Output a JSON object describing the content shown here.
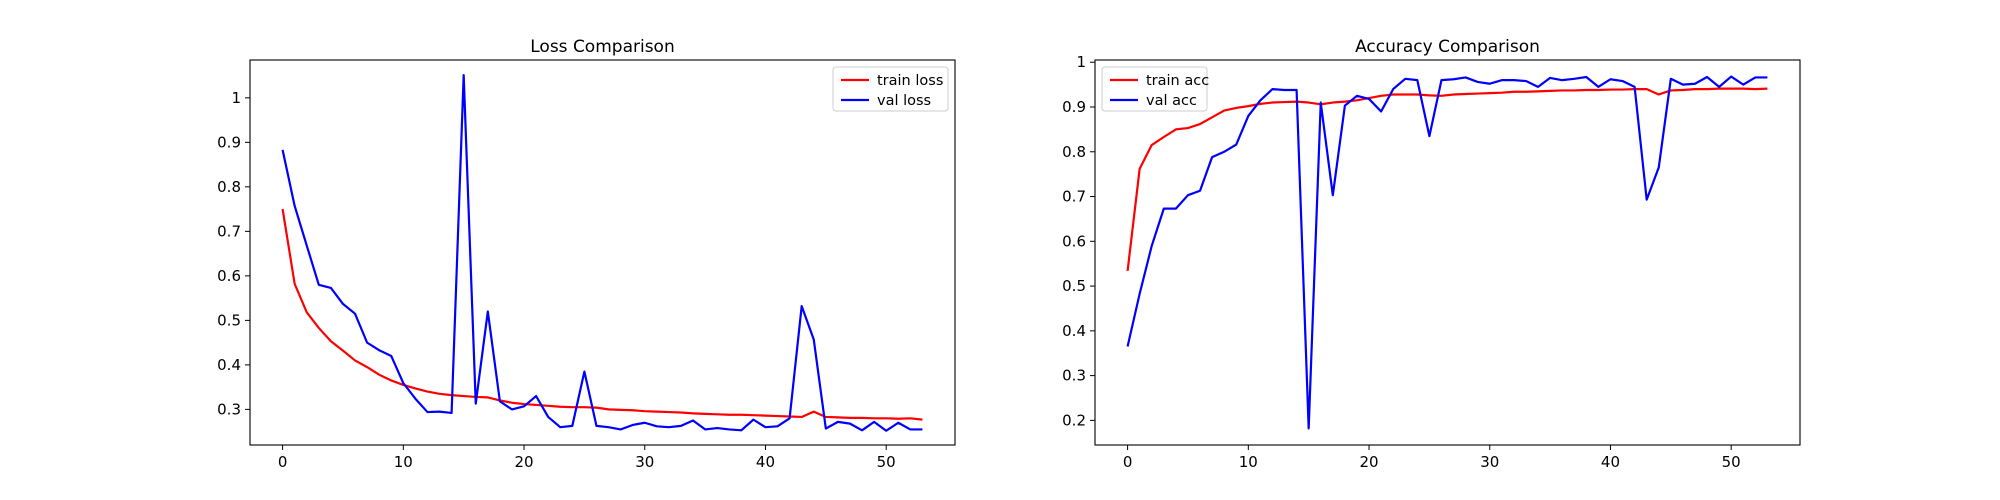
{
  "chart_data": [
    {
      "type": "line",
      "title": "Loss Comparison",
      "xlabel": "",
      "ylabel": "",
      "xlim": [
        -2.7,
        55.7
      ],
      "ylim": [
        0.22,
        1.085
      ],
      "xticks": [
        0,
        10,
        20,
        30,
        40,
        50
      ],
      "yticks": [
        0.3,
        0.4,
        0.5,
        0.6,
        0.7,
        0.8,
        0.9,
        1.0
      ],
      "grid": false,
      "legend_position": "top-right",
      "x": [
        0,
        1,
        2,
        3,
        4,
        5,
        6,
        7,
        8,
        9,
        10,
        11,
        12,
        13,
        14,
        15,
        16,
        17,
        18,
        19,
        20,
        21,
        22,
        23,
        24,
        25,
        26,
        27,
        28,
        29,
        30,
        31,
        32,
        33,
        34,
        35,
        36,
        37,
        38,
        39,
        40,
        41,
        42,
        43,
        44,
        45,
        46,
        47,
        48,
        49,
        50,
        51,
        52,
        53
      ],
      "series": [
        {
          "name": "train loss",
          "color": "#ff0000",
          "values": [
            0.75,
            0.582,
            0.518,
            0.483,
            0.453,
            0.432,
            0.41,
            0.395,
            0.378,
            0.365,
            0.355,
            0.347,
            0.34,
            0.335,
            0.332,
            0.33,
            0.328,
            0.327,
            0.32,
            0.315,
            0.312,
            0.31,
            0.308,
            0.306,
            0.305,
            0.305,
            0.304,
            0.3,
            0.299,
            0.298,
            0.296,
            0.295,
            0.294,
            0.293,
            0.291,
            0.29,
            0.289,
            0.288,
            0.288,
            0.287,
            0.286,
            0.285,
            0.284,
            0.283,
            0.295,
            0.283,
            0.282,
            0.281,
            0.281,
            0.28,
            0.28,
            0.279,
            0.28,
            0.277
          ]
        },
        {
          "name": "val loss",
          "color": "#0000ff",
          "values": [
            0.883,
            0.757,
            0.668,
            0.58,
            0.573,
            0.537,
            0.515,
            0.45,
            0.433,
            0.42,
            0.359,
            0.324,
            0.294,
            0.295,
            0.292,
            1.051,
            0.313,
            0.52,
            0.318,
            0.3,
            0.307,
            0.33,
            0.283,
            0.26,
            0.263,
            0.385,
            0.263,
            0.26,
            0.255,
            0.265,
            0.27,
            0.262,
            0.26,
            0.263,
            0.275,
            0.255,
            0.258,
            0.255,
            0.253,
            0.277,
            0.26,
            0.262,
            0.28,
            0.532,
            0.457,
            0.257,
            0.272,
            0.268,
            0.253,
            0.272,
            0.252,
            0.27,
            0.255,
            0.255
          ]
        }
      ]
    },
    {
      "type": "line",
      "title": "Accuracy Comparison",
      "xlabel": "",
      "ylabel": "",
      "xlim": [
        -2.7,
        55.7
      ],
      "ylim": [
        0.145,
        1.005
      ],
      "xticks": [
        0,
        10,
        20,
        30,
        40,
        50
      ],
      "yticks": [
        0.2,
        0.3,
        0.4,
        0.5,
        0.6,
        0.7,
        0.8,
        0.9,
        1.0
      ],
      "grid": false,
      "legend_position": "top-left",
      "x": [
        0,
        1,
        2,
        3,
        4,
        5,
        6,
        7,
        8,
        9,
        10,
        11,
        12,
        13,
        14,
        15,
        16,
        17,
        18,
        19,
        20,
        21,
        22,
        23,
        24,
        25,
        26,
        27,
        28,
        29,
        30,
        31,
        32,
        33,
        34,
        35,
        36,
        37,
        38,
        39,
        40,
        41,
        42,
        43,
        44,
        45,
        46,
        47,
        48,
        49,
        50,
        51,
        52,
        53
      ],
      "series": [
        {
          "name": "train acc",
          "color": "#ff0000",
          "values": [
            0.534,
            0.762,
            0.815,
            0.833,
            0.85,
            0.853,
            0.862,
            0.877,
            0.892,
            0.898,
            0.902,
            0.907,
            0.91,
            0.911,
            0.912,
            0.91,
            0.906,
            0.91,
            0.912,
            0.915,
            0.92,
            0.925,
            0.928,
            0.928,
            0.928,
            0.926,
            0.925,
            0.928,
            0.929,
            0.93,
            0.931,
            0.932,
            0.934,
            0.934,
            0.935,
            0.936,
            0.937,
            0.937,
            0.938,
            0.938,
            0.939,
            0.939,
            0.94,
            0.94,
            0.928,
            0.937,
            0.938,
            0.94,
            0.94,
            0.941,
            0.941,
            0.941,
            0.94,
            0.941
          ]
        },
        {
          "name": "val acc",
          "color": "#0000ff",
          "values": [
            0.365,
            0.483,
            0.59,
            0.673,
            0.673,
            0.703,
            0.713,
            0.788,
            0.8,
            0.816,
            0.88,
            0.915,
            0.94,
            0.938,
            0.938,
            0.182,
            0.91,
            0.703,
            0.903,
            0.925,
            0.918,
            0.89,
            0.94,
            0.963,
            0.96,
            0.835,
            0.96,
            0.962,
            0.966,
            0.956,
            0.952,
            0.96,
            0.96,
            0.958,
            0.945,
            0.965,
            0.96,
            0.963,
            0.967,
            0.945,
            0.962,
            0.958,
            0.945,
            0.693,
            0.765,
            0.963,
            0.95,
            0.952,
            0.967,
            0.945,
            0.968,
            0.95,
            0.966,
            0.966
          ]
        }
      ]
    }
  ]
}
